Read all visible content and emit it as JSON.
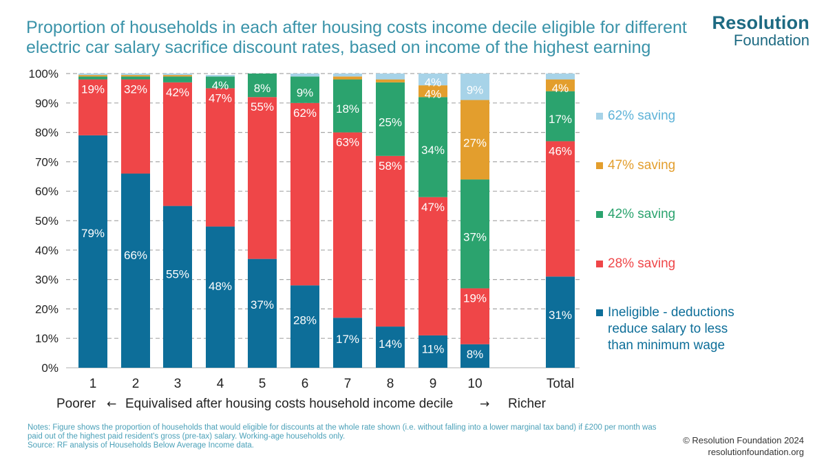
{
  "title": "Proportion of households in each after housing costs income decile eligible for different electric car salary sacrifice discount rates, based on income of the highest earning",
  "logo": {
    "line1": "Resolution",
    "line2": "Foundation"
  },
  "notes": {
    "line1": "Notes: Figure shows the proportion of households that would eligible for discounts at the whole rate shown (i.e. without falling into a lower marginal tax band) if £200 per month was paid out of the highest paid resident's gross (pre-tax) salary. Working-age households only.",
    "line2": "Source: RF analysis of Households Below Average Income data."
  },
  "credit": {
    "copyright": "© Resolution Foundation 2024",
    "website": "resolutionfoundation.org"
  },
  "chart_data": {
    "type": "bar",
    "stacked": true,
    "orientation": "vertical",
    "categories": [
      "1",
      "2",
      "3",
      "4",
      "5",
      "6",
      "7",
      "8",
      "9",
      "10",
      "Total"
    ],
    "xlabel": {
      "left": "Poorer",
      "left_arrow": "←",
      "center": "Equivalised after housing costs household income decile",
      "right_arrow": "→",
      "right": "Richer"
    },
    "ylim": [
      0,
      100
    ],
    "yticks": [
      0,
      10,
      20,
      30,
      40,
      50,
      60,
      70,
      80,
      90,
      100
    ],
    "ytick_labels": [
      "0%",
      "10%",
      "20%",
      "30%",
      "40%",
      "50%",
      "60%",
      "70%",
      "80%",
      "90%",
      "100%"
    ],
    "grid": true,
    "legend_position": "right",
    "series": [
      {
        "name": "Ineligible - deductions reduce salary to less than minimum wage",
        "legend_lines": [
          "Ineligible - deductions",
          "reduce salary to less",
          "than minimum wage"
        ],
        "color": "#0d6e99",
        "label_color": "#ffffff",
        "values": [
          79,
          66,
          55,
          48,
          37,
          28,
          17,
          14,
          11,
          8,
          31
        ],
        "labels": [
          "79%",
          "66%",
          "55%",
          "48%",
          "37%",
          "28%",
          "17%",
          "14%",
          "11%",
          "8%",
          "31%"
        ]
      },
      {
        "name": "28% saving",
        "legend_lines": [
          "28% saving"
        ],
        "color": "#ef4648",
        "label_color": "#ffffff",
        "values": [
          19,
          32,
          42,
          47,
          55,
          62,
          63,
          58,
          47,
          19,
          46
        ],
        "labels": [
          "19%",
          "32%",
          "42%",
          "47%",
          "55%",
          "62%",
          "63%",
          "58%",
          "47%",
          "19%",
          "46%"
        ]
      },
      {
        "name": "42% saving",
        "legend_lines": [
          "42% saving"
        ],
        "color": "#2ba36e",
        "label_color": "#ffffff",
        "values": [
          1,
          1,
          2,
          4,
          8,
          9,
          18,
          25,
          34,
          37,
          17
        ],
        "labels": [
          "",
          "",
          "",
          "4%",
          "8%",
          "9%",
          "18%",
          "25%",
          "34%",
          "37%",
          "17%"
        ]
      },
      {
        "name": "47% saving",
        "legend_lines": [
          "47% saving"
        ],
        "color": "#e39e2d",
        "label_color": "#ffffff",
        "values": [
          0.5,
          0.5,
          0.5,
          0,
          0,
          0,
          1,
          1,
          4,
          27,
          4
        ],
        "labels": [
          "",
          "",
          "",
          "",
          "",
          "",
          "",
          "",
          "4%",
          "27%",
          "4%"
        ]
      },
      {
        "name": "62% saving",
        "legend_lines": [
          "62% saving"
        ],
        "color": "#a7d3e8",
        "label_color": "#ffffff",
        "values": [
          0.5,
          0.5,
          0.5,
          0.5,
          0.5,
          1,
          1,
          2,
          4,
          9,
          2
        ],
        "labels": [
          "",
          "",
          "",
          "",
          "",
          "",
          "",
          "",
          "4%",
          "9%",
          ""
        ]
      }
    ]
  }
}
